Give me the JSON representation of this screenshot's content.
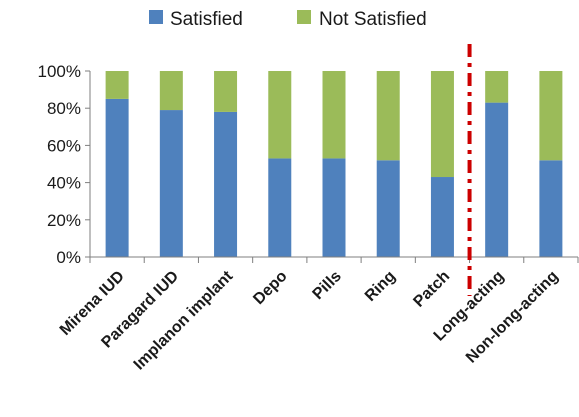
{
  "chart_data": {
    "type": "bar",
    "stacked": true,
    "percent_stacked": true,
    "categories": [
      "Mirena IUD",
      "Paragard IUD",
      "Implanon implant",
      "Depo",
      "Pills",
      "Ring",
      "Patch",
      "Long-acting",
      "Non-long-acting"
    ],
    "series": [
      {
        "name": "Satisfied",
        "color": "#4F81BD",
        "values": [
          85,
          79,
          78,
          53,
          53,
          52,
          43,
          83,
          52
        ]
      },
      {
        "name": "Not Satisfied",
        "color": "#9BBB59",
        "values": [
          15,
          21,
          22,
          47,
          47,
          48,
          57,
          17,
          48
        ]
      }
    ],
    "y_ticks": [
      "0%",
      "20%",
      "40%",
      "60%",
      "80%",
      "100%"
    ],
    "ylim": [
      0,
      100
    ],
    "grid": false,
    "legend_position": "top",
    "title": "",
    "xlabel": "",
    "ylabel": "",
    "annotation": {
      "type": "vertical dash-dot line",
      "between": [
        "Patch",
        "Long-acting"
      ],
      "color": "#CC0000"
    }
  }
}
